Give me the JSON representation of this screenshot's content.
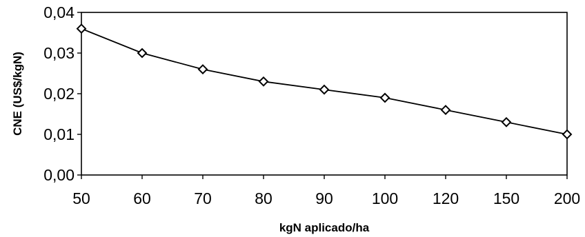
{
  "chart_data": {
    "type": "line",
    "categories": [
      "50",
      "60",
      "70",
      "80",
      "90",
      "100",
      "120",
      "150",
      "200"
    ],
    "values": [
      0.036,
      0.03,
      0.026,
      0.023,
      0.021,
      0.019,
      0.016,
      0.013,
      0.01
    ],
    "y_ticks": [
      "0,00",
      "0,01",
      "0,02",
      "0,03",
      "0,04"
    ],
    "ylim": [
      0,
      0.04
    ],
    "xlabel": "kgN aplicado/ha",
    "ylabel": "CNE (US$/kgN)",
    "marker": "diamond",
    "grid": false,
    "legend": "none",
    "colors": {
      "line": "#000000",
      "marker_fill": "#ffffff"
    }
  }
}
